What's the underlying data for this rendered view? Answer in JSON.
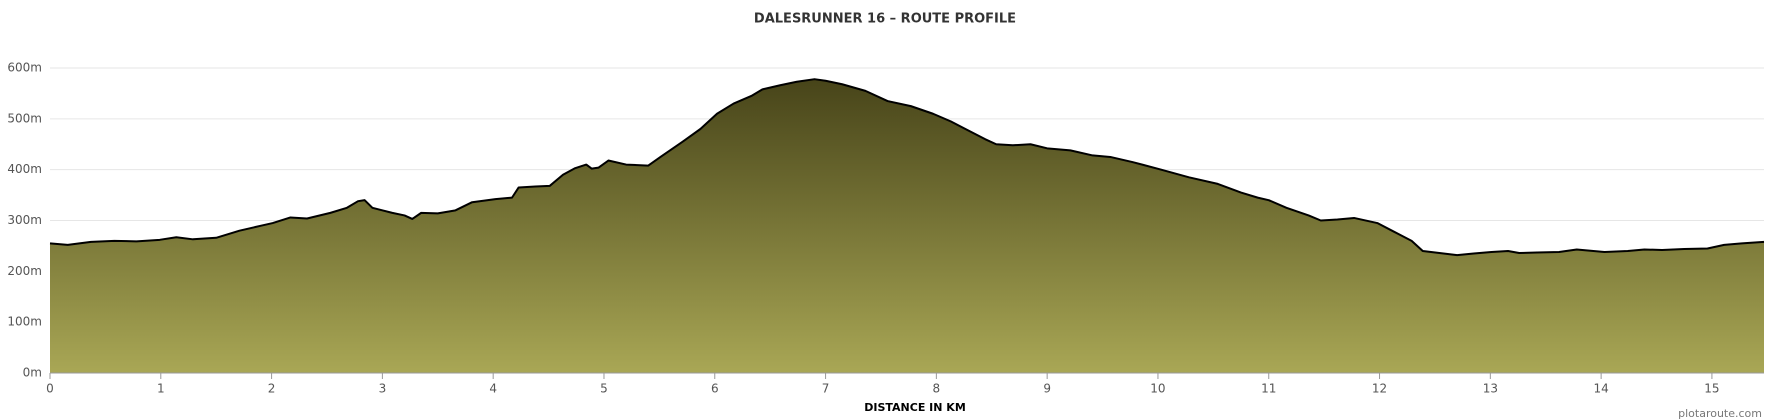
{
  "chart_data": {
    "type": "area",
    "title": "DALESRUNNER 16 – ROUTE PROFILE",
    "x_label": "DISTANCE IN KM",
    "credit": "plotaroute.com",
    "fill_top_color": "#474419",
    "fill_bottom_color": "#a9a755",
    "line_color": "#000000",
    "grid": true,
    "xlim": [
      0,
      15.47
    ],
    "ylim": [
      0,
      600
    ],
    "xticks": [
      0,
      1,
      2,
      3,
      4,
      5,
      6,
      7,
      8,
      9,
      10,
      11,
      12,
      13,
      14,
      15
    ],
    "yticks": [
      {
        "value": 0,
        "label": "0m"
      },
      {
        "value": 100,
        "label": "100m"
      },
      {
        "value": 200,
        "label": "200m"
      },
      {
        "value": 300,
        "label": "300m"
      },
      {
        "value": 400,
        "label": "400m"
      },
      {
        "value": 500,
        "label": "500m"
      },
      {
        "value": 600,
        "label": "600m"
      }
    ],
    "x": [
      0,
      0.16,
      0.37,
      0.58,
      0.78,
      0.99,
      1.14,
      1.29,
      1.5,
      1.71,
      1.91,
      2.01,
      2.17,
      2.32,
      2.53,
      2.68,
      2.78,
      2.84,
      2.91,
      3.09,
      3.2,
      3.27,
      3.35,
      3.5,
      3.66,
      3.81,
      4.02,
      4.17,
      4.23,
      4.38,
      4.51,
      4.63,
      4.74,
      4.84,
      4.89,
      4.95,
      5.04,
      5.2,
      5.4,
      5.51,
      5.71,
      5.87,
      6.02,
      6.17,
      6.33,
      6.43,
      6.59,
      6.74,
      6.9,
      7.0,
      7.15,
      7.36,
      7.56,
      7.77,
      7.97,
      8.13,
      8.28,
      8.44,
      8.54,
      8.69,
      8.85,
      9.0,
      9.21,
      9.41,
      9.57,
      9.77,
      10.03,
      10.28,
      10.54,
      10.75,
      10.9,
      11.0,
      11.16,
      11.36,
      11.47,
      11.62,
      11.77,
      11.98,
      12.13,
      12.29,
      12.39,
      12.54,
      12.7,
      12.85,
      13.01,
      13.16,
      13.26,
      13.42,
      13.62,
      13.78,
      13.93,
      14.03,
      14.24,
      14.39,
      14.55,
      14.75,
      14.96,
      15.11,
      15.27,
      15.47
    ],
    "values": [
      255,
      252,
      258,
      260,
      259,
      262,
      267,
      263,
      266,
      280,
      290,
      295,
      306,
      304,
      315,
      325,
      338,
      340,
      325,
      315,
      310,
      303,
      315,
      314,
      320,
      336,
      342,
      345,
      365,
      367,
      368,
      390,
      403,
      410,
      402,
      404,
      418,
      410,
      408,
      425,
      455,
      480,
      510,
      530,
      545,
      558,
      566,
      573,
      578,
      575,
      568,
      555,
      535,
      525,
      510,
      495,
      478,
      460,
      450,
      448,
      450,
      442,
      438,
      428,
      425,
      415,
      400,
      385,
      372,
      355,
      345,
      340,
      325,
      310,
      300,
      302,
      305,
      295,
      278,
      260,
      240,
      236,
      232,
      235,
      238,
      240,
      236,
      237,
      238,
      243,
      240,
      238,
      240,
      243,
      242,
      244,
      245,
      252,
      255,
      258
    ]
  }
}
